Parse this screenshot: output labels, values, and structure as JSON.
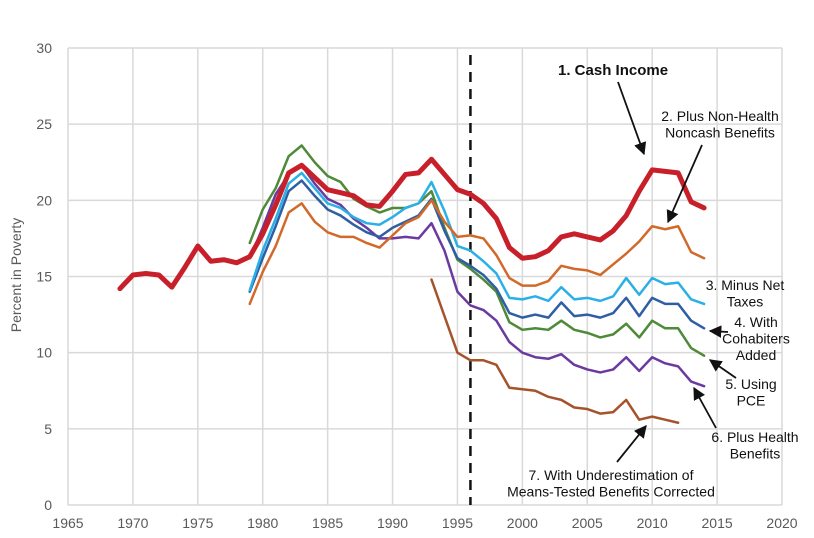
{
  "chart_data": {
    "type": "line",
    "title": "",
    "xlabel": "",
    "ylabel": "Percent in Poverty",
    "xlim": [
      1965,
      2020
    ],
    "ylim": [
      0,
      30
    ],
    "xticks": [
      1965,
      1970,
      1975,
      1980,
      1985,
      1990,
      1995,
      2000,
      2005,
      2010,
      2015,
      2020
    ],
    "yticks": [
      0,
      5,
      10,
      15,
      20,
      25,
      30
    ],
    "grid": true,
    "vline_year": 1996,
    "series": [
      {
        "name": "1. Cash Income",
        "color": "#c8202a",
        "width": 5,
        "start": 1969,
        "values": [
          14.2,
          15.1,
          15.2,
          15.1,
          14.3,
          15.6,
          17.0,
          16.0,
          16.1,
          15.9,
          16.3,
          17.8,
          19.7,
          21.8,
          22.3,
          21.5,
          20.7,
          20.5,
          20.3,
          19.7,
          19.6,
          20.6,
          21.7,
          21.8,
          22.7,
          21.7,
          20.7,
          20.4,
          19.8,
          18.8,
          16.9,
          16.2,
          16.3,
          16.7,
          17.6,
          17.8,
          17.6,
          17.4,
          18.0,
          19.0,
          20.6,
          22.0,
          21.9,
          21.8,
          19.9,
          19.5
        ]
      },
      {
        "name": "2. Plus Non-Health Noncash Benefits",
        "color": "#d2692a",
        "width": 2.5,
        "start": 1979,
        "values": [
          13.2,
          15.3,
          17.0,
          19.2,
          19.8,
          18.6,
          17.9,
          17.6,
          17.6,
          17.2,
          16.9,
          17.7,
          18.5,
          18.9,
          20.0,
          18.6,
          17.6,
          17.7,
          17.5,
          16.4,
          14.9,
          14.4,
          14.4,
          14.7,
          15.7,
          15.5,
          15.4,
          15.1,
          15.8,
          16.5,
          17.3,
          18.3,
          18.1,
          18.3,
          16.6,
          16.2
        ]
      },
      {
        "name": "3. Minus Net Taxes",
        "color": "#2bb0e6",
        "width": 2.5,
        "start": 1979,
        "values": [
          14.1,
          16.7,
          18.8,
          21.1,
          21.8,
          20.8,
          19.8,
          19.5,
          18.9,
          18.5,
          18.4,
          18.9,
          19.5,
          19.8,
          21.2,
          19.3,
          17.0,
          16.7,
          16.0,
          15.2,
          13.6,
          13.5,
          13.7,
          13.4,
          14.3,
          13.5,
          13.6,
          13.4,
          13.7,
          14.9,
          13.8,
          14.9,
          14.5,
          14.6,
          13.5,
          13.2
        ]
      },
      {
        "name": "4. With Cohabiters Added",
        "color": "#2e5fa3",
        "width": 2.5,
        "start": 1979,
        "values": [
          14.0,
          16.2,
          18.3,
          20.6,
          21.3,
          20.3,
          19.4,
          19.0,
          18.4,
          17.9,
          17.6,
          18.2,
          18.6,
          19.0,
          20.1,
          18.0,
          16.2,
          15.7,
          15.1,
          14.2,
          12.6,
          12.3,
          12.5,
          12.3,
          13.3,
          12.4,
          12.5,
          12.3,
          12.6,
          13.6,
          12.4,
          13.6,
          13.2,
          13.2,
          12.1,
          11.6
        ]
      },
      {
        "name": "5. Using PCE",
        "color": "#4e8a3a",
        "width": 2.5,
        "start": 1979,
        "values": [
          17.2,
          19.4,
          20.8,
          22.9,
          23.6,
          22.5,
          21.6,
          21.2,
          20.1,
          19.6,
          19.2,
          19.5,
          19.5,
          19.8,
          20.6,
          18.2,
          16.1,
          15.5,
          14.8,
          14.0,
          12.0,
          11.5,
          11.6,
          11.5,
          12.1,
          11.5,
          11.3,
          11.0,
          11.2,
          11.9,
          11.0,
          12.1,
          11.6,
          11.6,
          10.3,
          9.8
        ]
      },
      {
        "name": "6. Plus Health Benefits",
        "color": "#6b3aa0",
        "width": 2.5,
        "start": 1979,
        "values": [
          16.2,
          18.2,
          20.4,
          21.7,
          22.3,
          21.1,
          20.1,
          19.7,
          18.8,
          18.2,
          17.5,
          17.5,
          17.6,
          17.5,
          18.5,
          16.7,
          14.0,
          13.1,
          12.8,
          12.1,
          10.7,
          10.0,
          9.7,
          9.6,
          9.9,
          9.2,
          8.9,
          8.7,
          8.9,
          9.7,
          8.8,
          9.7,
          9.3,
          9.1,
          8.1,
          7.8
        ]
      },
      {
        "name": "7. With Underestimation of Means-Tested Benefits Corrected",
        "color": "#a5532a",
        "width": 2.5,
        "start": 1993,
        "values": [
          14.8,
          12.4,
          10.0,
          9.5,
          9.5,
          9.2,
          7.7,
          7.6,
          7.5,
          7.1,
          6.9,
          6.4,
          6.3,
          6.0,
          6.1,
          6.9,
          5.6,
          5.8,
          5.6,
          5.4
        ]
      }
    ],
    "annotations": [
      {
        "lines": [
          "1. Cash Income"
        ],
        "bold": true
      },
      {
        "lines": [
          "2. Plus Non-Health",
          "Noncash Benefits"
        ]
      },
      {
        "lines": [
          "3. Minus Net",
          "Taxes"
        ]
      },
      {
        "lines": [
          "4. With",
          "Cohabiters",
          "Added"
        ]
      },
      {
        "lines": [
          "5. Using",
          "PCE"
        ]
      },
      {
        "lines": [
          "6. Plus Health",
          "Benefits"
        ]
      },
      {
        "lines": [
          "7. With Underestimation of",
          "Means-Tested Benefits Corrected"
        ]
      }
    ]
  }
}
